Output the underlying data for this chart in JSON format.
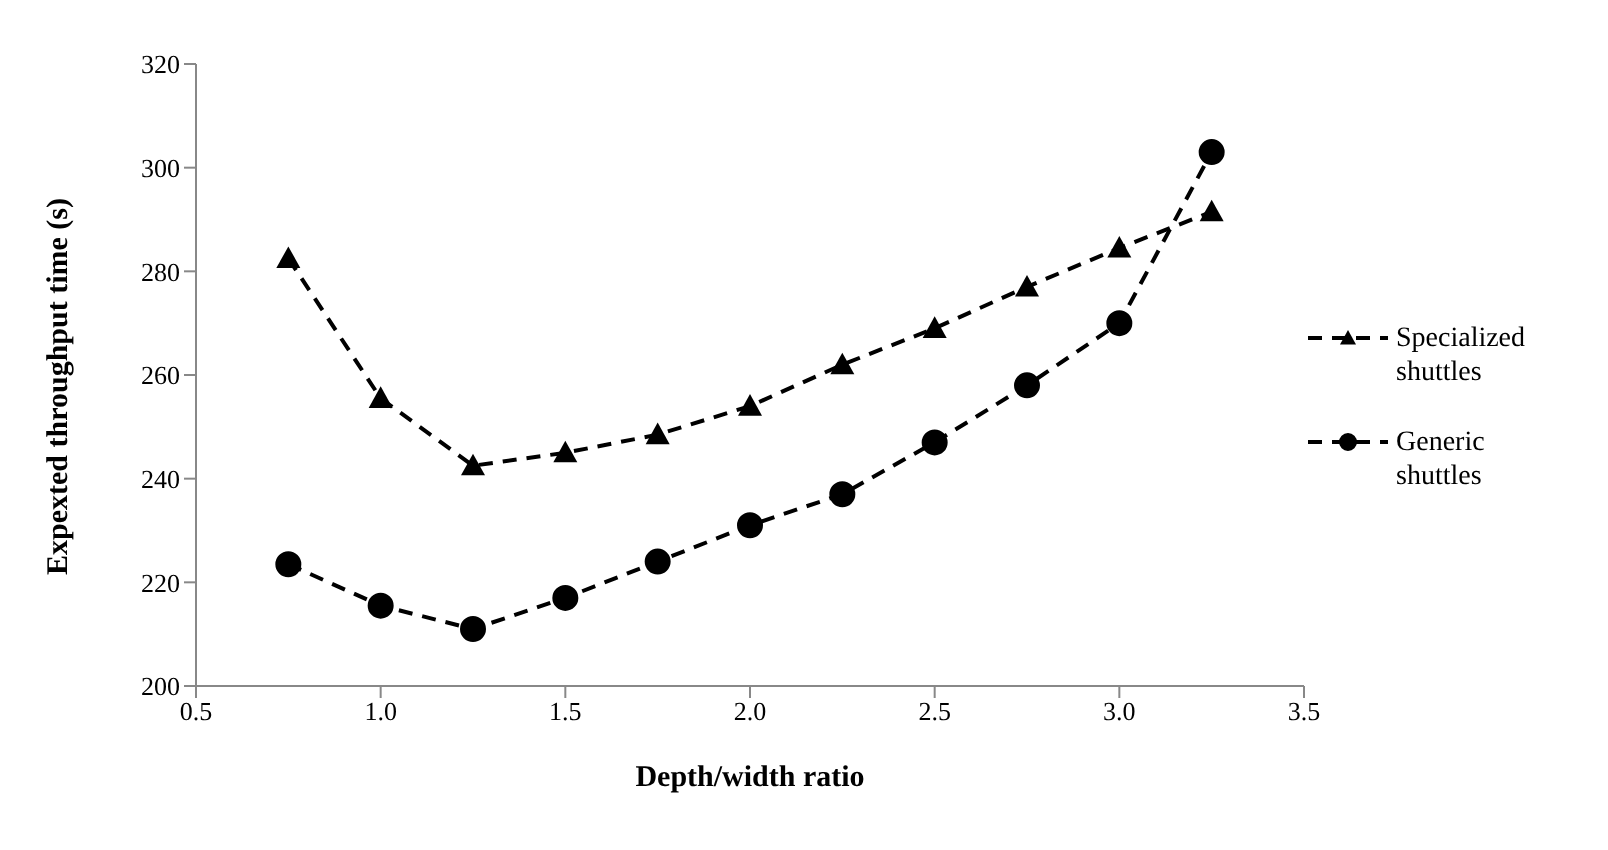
{
  "chart_data": {
    "type": "line",
    "xlabel": "Depth/width ratio",
    "ylabel": "Expexted throughput time (s)",
    "x": [
      0.75,
      1.0,
      1.25,
      1.5,
      1.75,
      2.0,
      2.25,
      2.5,
      2.75,
      3.0,
      3.25
    ],
    "series": [
      {
        "name": "Specialized shuttles",
        "color": "#000000",
        "marker": "triangle",
        "values": [
          282.5,
          255.5,
          242.5,
          245,
          248.5,
          254,
          262,
          269,
          277,
          284.5,
          291.5
        ]
      },
      {
        "name": "Generic shuttles",
        "color": "#000000",
        "marker": "circle",
        "values": [
          223.5,
          215.5,
          211,
          217,
          224,
          231,
          237,
          247,
          258,
          270,
          303
        ]
      }
    ],
    "xlim": [
      0.5,
      3.5
    ],
    "xticks": [
      {
        "value": 0.5,
        "label": "0.5"
      },
      {
        "value": 1,
        "label": "1.0"
      },
      {
        "value": 1.5,
        "label": "1.5"
      },
      {
        "value": 2,
        "label": "2.0"
      },
      {
        "value": 2.5,
        "label": "2.5"
      },
      {
        "value": 3,
        "label": "3.0"
      },
      {
        "value": 3.5,
        "label": "3.5"
      }
    ],
    "ylim": [
      200,
      320
    ],
    "yticks": [
      200,
      220,
      240,
      260,
      280,
      300,
      320
    ],
    "line_style": "dashed",
    "grid": false,
    "legend": "right"
  }
}
